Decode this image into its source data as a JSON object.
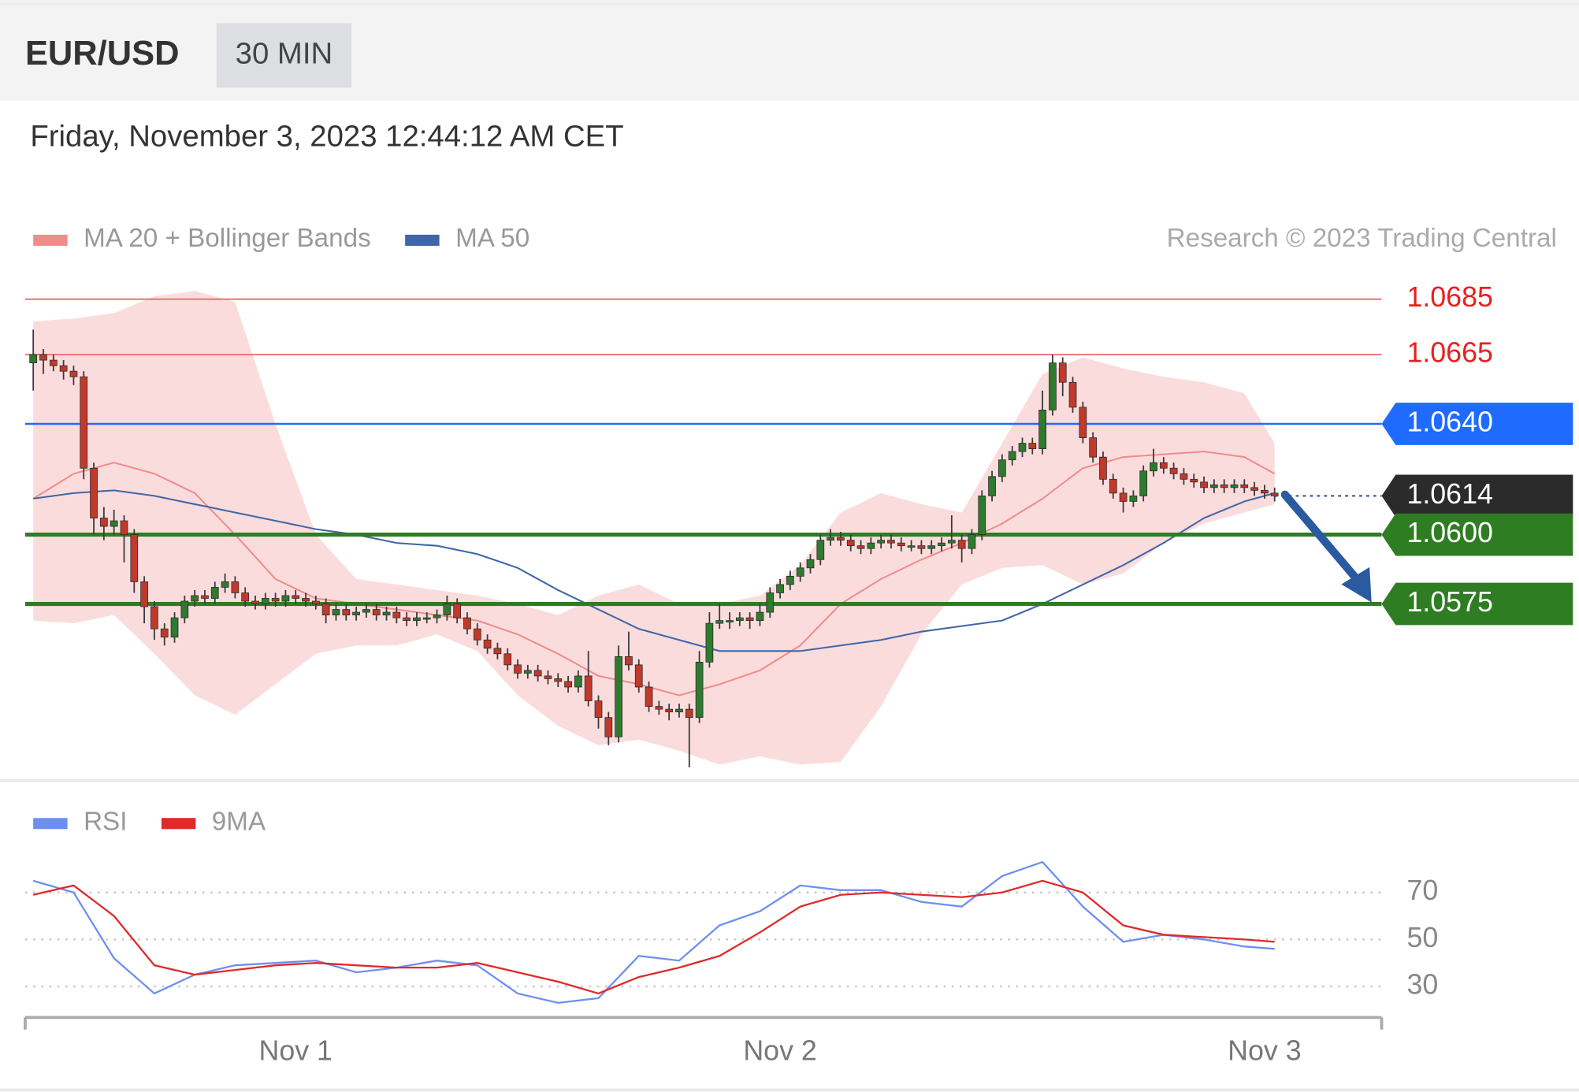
{
  "header": {
    "symbol": "EUR/USD",
    "timeframe": "30 MIN",
    "timestamp": "Friday, November 3, 2023 12:44:12 AM CET"
  },
  "chart_data": [
    {
      "type": "candlestick",
      "source": "Research © 2023 Trading Central",
      "xlim": [
        -1,
        134
      ],
      "ylim": [
        1.0515,
        1.069
      ],
      "up_color": "#2e7a2e",
      "down_color": "#c0392b",
      "wick_color": "#3a3a3a",
      "ohlc": [
        [
          1.0662,
          1.0674,
          1.0652,
          1.0665
        ],
        [
          1.0665,
          1.0667,
          1.0658,
          1.0663
        ],
        [
          1.0663,
          1.0665,
          1.0659,
          1.0661
        ],
        [
          1.0661,
          1.0663,
          1.0656,
          1.0659
        ],
        [
          1.0659,
          1.0661,
          1.0654,
          1.0657
        ],
        [
          1.0657,
          1.0659,
          1.062,
          1.0624
        ],
        [
          1.0624,
          1.0626,
          1.06,
          1.0606
        ],
        [
          1.0606,
          1.061,
          1.0598,
          1.0603
        ],
        [
          1.0603,
          1.0609,
          1.06,
          1.0605
        ],
        [
          1.0605,
          1.0607,
          1.059,
          1.06
        ],
        [
          1.06,
          1.0602,
          1.0579,
          1.0583
        ],
        [
          1.0583,
          1.0585,
          1.0568,
          1.0574
        ],
        [
          1.0574,
          1.0576,
          1.0562,
          1.0566
        ],
        [
          1.0566,
          1.0568,
          1.056,
          1.0563
        ],
        [
          1.0563,
          1.0572,
          1.0561,
          1.057
        ],
        [
          1.057,
          1.0578,
          1.0568,
          1.0576
        ],
        [
          1.0576,
          1.058,
          1.0574,
          1.0578
        ],
        [
          1.0578,
          1.058,
          1.0575,
          1.0577
        ],
        [
          1.0577,
          1.0583,
          1.0575,
          1.0581
        ],
        [
          1.0581,
          1.0586,
          1.0579,
          1.0583
        ],
        [
          1.0583,
          1.0585,
          1.0577,
          1.0579
        ],
        [
          1.0579,
          1.0581,
          1.0574,
          1.0576
        ],
        [
          1.0576,
          1.0578,
          1.0573,
          1.0575
        ],
        [
          1.0575,
          1.0579,
          1.0573,
          1.0577
        ],
        [
          1.0577,
          1.0579,
          1.0574,
          1.0576
        ],
        [
          1.0576,
          1.058,
          1.0574,
          1.0578
        ],
        [
          1.0578,
          1.058,
          1.0575,
          1.0577
        ],
        [
          1.0577,
          1.0579,
          1.0574,
          1.0576
        ],
        [
          1.0576,
          1.0578,
          1.0573,
          1.0575
        ],
        [
          1.0575,
          1.0577,
          1.0568,
          1.0571
        ],
        [
          1.0571,
          1.0575,
          1.0569,
          1.0573
        ],
        [
          1.0573,
          1.0575,
          1.0569,
          1.0571
        ],
        [
          1.0571,
          1.0574,
          1.0569,
          1.0572
        ],
        [
          1.0572,
          1.0575,
          1.057,
          1.0573
        ],
        [
          1.0573,
          1.0575,
          1.0569,
          1.0571
        ],
        [
          1.0571,
          1.0574,
          1.0569,
          1.0572
        ],
        [
          1.0572,
          1.0574,
          1.0568,
          1.057
        ],
        [
          1.057,
          1.0572,
          1.0567,
          1.0569
        ],
        [
          1.0569,
          1.0572,
          1.0567,
          1.057
        ],
        [
          1.057,
          1.0572,
          1.0568,
          1.057
        ],
        [
          1.057,
          1.0573,
          1.0568,
          1.0571
        ],
        [
          1.0571,
          1.0578,
          1.0569,
          1.0575
        ],
        [
          1.0575,
          1.0577,
          1.0568,
          1.057
        ],
        [
          1.057,
          1.0572,
          1.0564,
          1.0566
        ],
        [
          1.0566,
          1.0568,
          1.056,
          1.0562
        ],
        [
          1.0562,
          1.0564,
          1.0557,
          1.0559
        ],
        [
          1.0559,
          1.0561,
          1.0555,
          1.0557
        ],
        [
          1.0557,
          1.0559,
          1.0551,
          1.0553
        ],
        [
          1.0553,
          1.0555,
          1.0548,
          1.055
        ],
        [
          1.055,
          1.0553,
          1.0548,
          1.0551
        ],
        [
          1.0551,
          1.0553,
          1.0547,
          1.0549
        ],
        [
          1.0549,
          1.0551,
          1.0546,
          1.0548
        ],
        [
          1.0548,
          1.055,
          1.0545,
          1.0547
        ],
        [
          1.0547,
          1.0549,
          1.0543,
          1.0545
        ],
        [
          1.0545,
          1.0551,
          1.0543,
          1.0549
        ],
        [
          1.0549,
          1.0558,
          1.0538,
          1.054
        ],
        [
          1.054,
          1.0542,
          1.053,
          1.0534
        ],
        [
          1.0534,
          1.0536,
          1.0524,
          1.0527
        ],
        [
          1.0527,
          1.056,
          1.0525,
          1.0556
        ],
        [
          1.0556,
          1.0565,
          1.0551,
          1.0553
        ],
        [
          1.0553,
          1.0555,
          1.0543,
          1.0545
        ],
        [
          1.0545,
          1.0547,
          1.0536,
          1.0538
        ],
        [
          1.0538,
          1.054,
          1.0535,
          1.0537
        ],
        [
          1.0537,
          1.0539,
          1.0533,
          1.0536
        ],
        [
          1.0536,
          1.0539,
          1.0534,
          1.0537
        ],
        [
          1.0537,
          1.0539,
          1.0516,
          1.0534
        ],
        [
          1.0534,
          1.0558,
          1.0532,
          1.0554
        ],
        [
          1.0554,
          1.0572,
          1.0552,
          1.0568
        ],
        [
          1.0568,
          1.0575,
          1.0566,
          1.0569
        ],
        [
          1.0569,
          1.0572,
          1.0566,
          1.0569
        ],
        [
          1.0569,
          1.0572,
          1.0567,
          1.057
        ],
        [
          1.057,
          1.0572,
          1.0566,
          1.0569
        ],
        [
          1.0569,
          1.0575,
          1.0567,
          1.0572
        ],
        [
          1.0572,
          1.0581,
          1.057,
          1.0579
        ],
        [
          1.0579,
          1.0584,
          1.0577,
          1.0582
        ],
        [
          1.0582,
          1.0587,
          1.058,
          1.0585
        ],
        [
          1.0585,
          1.059,
          1.0583,
          1.0588
        ],
        [
          1.0588,
          1.0593,
          1.0586,
          1.0591
        ],
        [
          1.0591,
          1.06,
          1.0589,
          1.0598
        ],
        [
          1.0598,
          1.0602,
          1.0596,
          1.0599
        ],
        [
          1.0599,
          1.0601,
          1.0596,
          1.0598
        ],
        [
          1.0598,
          1.06,
          1.0594,
          1.0596
        ],
        [
          1.0596,
          1.0598,
          1.0593,
          1.0595
        ],
        [
          1.0595,
          1.0599,
          1.0593,
          1.0597
        ],
        [
          1.0597,
          1.06,
          1.0595,
          1.0598
        ],
        [
          1.0598,
          1.06,
          1.0595,
          1.0597
        ],
        [
          1.0597,
          1.0599,
          1.0594,
          1.0596
        ],
        [
          1.0596,
          1.0598,
          1.0594,
          1.0596
        ],
        [
          1.0596,
          1.0598,
          1.0593,
          1.0595
        ],
        [
          1.0595,
          1.0598,
          1.0593,
          1.0596
        ],
        [
          1.0596,
          1.0599,
          1.0594,
          1.0597
        ],
        [
          1.0597,
          1.0607,
          1.0595,
          1.0598
        ],
        [
          1.0598,
          1.06,
          1.059,
          1.0595
        ],
        [
          1.0595,
          1.0602,
          1.0593,
          1.06
        ],
        [
          1.06,
          1.0616,
          1.0598,
          1.0614
        ],
        [
          1.0614,
          1.0623,
          1.0612,
          1.0621
        ],
        [
          1.0621,
          1.0629,
          1.0619,
          1.0627
        ],
        [
          1.0627,
          1.0632,
          1.0625,
          1.063
        ],
        [
          1.063,
          1.0635,
          1.0628,
          1.0633
        ],
        [
          1.0633,
          1.0635,
          1.0629,
          1.0631
        ],
        [
          1.0631,
          1.0652,
          1.0629,
          1.0645
        ],
        [
          1.0645,
          1.0665,
          1.0643,
          1.0662
        ],
        [
          1.0662,
          1.0664,
          1.065,
          1.0655
        ],
        [
          1.0655,
          1.0657,
          1.0644,
          1.0646
        ],
        [
          1.0646,
          1.0648,
          1.0633,
          1.0635
        ],
        [
          1.0635,
          1.0637,
          1.0626,
          1.0628
        ],
        [
          1.0628,
          1.063,
          1.0618,
          1.062
        ],
        [
          1.062,
          1.0622,
          1.0613,
          1.0615
        ],
        [
          1.0615,
          1.0617,
          1.0608,
          1.0612
        ],
        [
          1.0612,
          1.0616,
          1.061,
          1.0614
        ],
        [
          1.0614,
          1.0625,
          1.0612,
          1.0623
        ],
        [
          1.0623,
          1.0631,
          1.0621,
          1.0626
        ],
        [
          1.0626,
          1.0628,
          1.0622,
          1.0624
        ],
        [
          1.0624,
          1.0626,
          1.062,
          1.0622
        ],
        [
          1.0622,
          1.0624,
          1.0618,
          1.062
        ],
        [
          1.062,
          1.0622,
          1.0617,
          1.0619
        ],
        [
          1.0619,
          1.0621,
          1.0615,
          1.0617
        ],
        [
          1.0617,
          1.062,
          1.0615,
          1.0618
        ],
        [
          1.0618,
          1.062,
          1.0615,
          1.0617
        ],
        [
          1.0617,
          1.062,
          1.0615,
          1.0618
        ],
        [
          1.0618,
          1.062,
          1.0615,
          1.0617
        ],
        [
          1.0617,
          1.0619,
          1.0614,
          1.0616
        ],
        [
          1.0616,
          1.0618,
          1.0613,
          1.0615
        ],
        [
          1.0615,
          1.0617,
          1.0612,
          1.0614
        ]
      ],
      "x": [
        0,
        4,
        8,
        12,
        16,
        20,
        24,
        28,
        32,
        36,
        40,
        44,
        48,
        52,
        56,
        60,
        64,
        68,
        72,
        76,
        80,
        84,
        88,
        92,
        96,
        100,
        104,
        108,
        112,
        116,
        120,
        123
      ],
      "series": [
        {
          "name": "MA 20 + Bollinger Bands",
          "color": "#f08c8c",
          "band_color": "#fbdcdc",
          "values": [
            1.0613,
            1.0622,
            1.0626,
            1.0622,
            1.0615,
            1.06,
            1.0584,
            1.0577,
            1.0575,
            1.0573,
            1.0571,
            1.0569,
            1.0564,
            1.0557,
            1.0549,
            1.0546,
            1.0542,
            1.0546,
            1.0551,
            1.056,
            1.0575,
            1.0584,
            1.0591,
            1.0597,
            1.0604,
            1.0613,
            1.0624,
            1.0628,
            1.0629,
            1.063,
            1.0628,
            1.0622
          ],
          "upper": [
            1.0677,
            1.0678,
            1.068,
            1.0686,
            1.0688,
            1.0684,
            1.064,
            1.06,
            1.0584,
            1.0582,
            1.058,
            1.0578,
            1.0575,
            1.0571,
            1.0578,
            1.0582,
            1.0575,
            1.0575,
            1.0578,
            1.0589,
            1.0608,
            1.0615,
            1.0611,
            1.0608,
            1.0633,
            1.0658,
            1.0664,
            1.066,
            1.0657,
            1.0655,
            1.0651,
            1.0633
          ],
          "lower": [
            1.0569,
            1.0568,
            1.0571,
            1.0557,
            1.0542,
            1.0535,
            1.0546,
            1.0557,
            1.056,
            1.056,
            1.0564,
            1.0558,
            1.0542,
            1.0531,
            1.0524,
            1.0526,
            1.0522,
            1.0517,
            1.052,
            1.0517,
            1.0518,
            1.0538,
            1.0564,
            1.0582,
            1.0588,
            1.0589,
            1.0582,
            1.0586,
            1.0597,
            1.0604,
            1.0608,
            1.0611
          ]
        },
        {
          "name": "MA 50",
          "color": "#3f66a8",
          "values": [
            1.0613,
            1.0615,
            1.0616,
            1.0614,
            1.0611,
            1.0608,
            1.0605,
            1.0602,
            1.06,
            1.0597,
            1.0596,
            1.0593,
            1.0588,
            1.058,
            1.0573,
            1.0566,
            1.0562,
            1.0558,
            1.0558,
            1.0558,
            1.056,
            1.0562,
            1.0565,
            1.0567,
            1.0569,
            1.0575,
            1.0582,
            1.0589,
            1.0597,
            1.0606,
            1.0612,
            1.0615
          ]
        }
      ],
      "levels": [
        {
          "value": 1.0685,
          "color": "#f07070",
          "style": "plain"
        },
        {
          "value": 1.0665,
          "color": "#f07070",
          "style": "plain"
        },
        {
          "value": 1.064,
          "label": "1.0640",
          "color": "#1f6bff",
          "style": "tag"
        },
        {
          "value": 1.0614,
          "color": "#2b2b2b",
          "line_color": "#4a6fa8",
          "style": "current"
        },
        {
          "value": 1.06,
          "label": "1.0600",
          "color": "#2e7d22",
          "style": "support"
        },
        {
          "value": 1.0575,
          "color": "#2e7d22",
          "style": "support"
        }
      ]
    },
    {
      "type": "line",
      "xlim": [
        -1,
        134
      ],
      "ylim": [
        20,
        85
      ],
      "yticks": [
        30,
        50,
        70
      ],
      "grid": true,
      "x": [
        0,
        4,
        8,
        12,
        16,
        20,
        24,
        28,
        32,
        36,
        40,
        44,
        48,
        52,
        56,
        60,
        64,
        68,
        72,
        76,
        80,
        84,
        88,
        92,
        96,
        100,
        104,
        108,
        112,
        116,
        120,
        123
      ],
      "xticks": [
        {
          "value": 26,
          "label": "Nov 1"
        },
        {
          "value": 74,
          "label": "Nov 2"
        },
        {
          "value": 122,
          "label": "Nov 3"
        }
      ],
      "series": [
        {
          "name": "RSI",
          "color": "#6f8ff0",
          "values": [
            75,
            70,
            42,
            27,
            35,
            39,
            40,
            41,
            36,
            38,
            41,
            39,
            27,
            23,
            25,
            43,
            41,
            56,
            62,
            73,
            71,
            71,
            66,
            64,
            77,
            83,
            64,
            49,
            52,
            50,
            47,
            46
          ]
        },
        {
          "name": "9MA",
          "color": "#e02a2a",
          "values": [
            69,
            73,
            60,
            39,
            35,
            37,
            39,
            40,
            39,
            38,
            38,
            40,
            36,
            32,
            27,
            34,
            38,
            43,
            53,
            64,
            69,
            70,
            69,
            68,
            70,
            75,
            70,
            56,
            52,
            51,
            50,
            49
          ]
        }
      ]
    }
  ]
}
